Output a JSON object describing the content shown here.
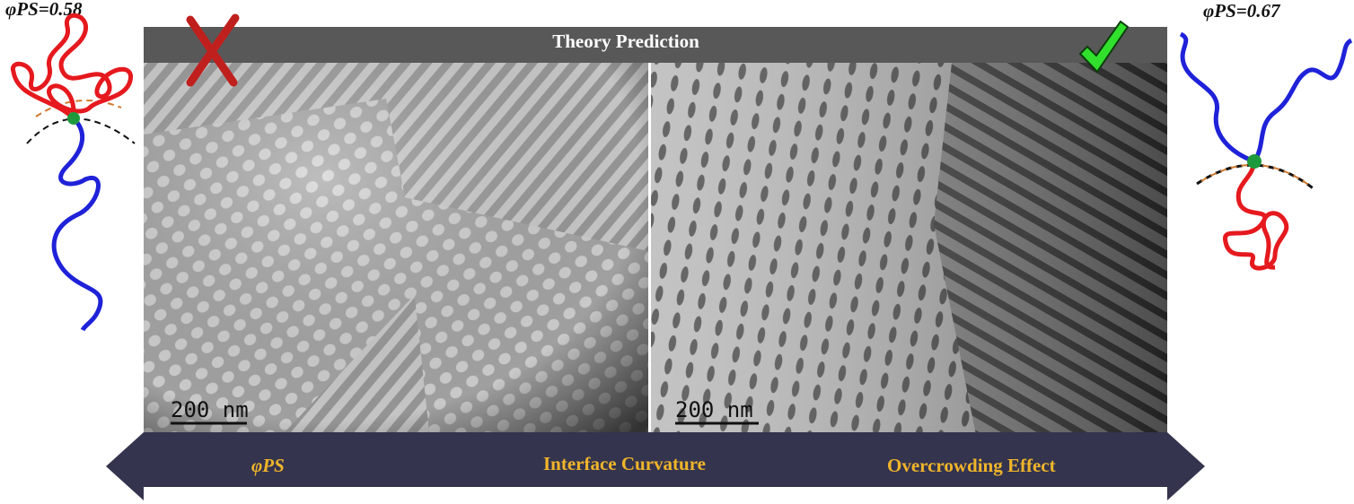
{
  "left_panel": {
    "fraction": "φPS=0.58",
    "scale_bar": "200 nm"
  },
  "right_panel": {
    "fraction": "φPS=0.67",
    "scale_bar": "200 nm"
  },
  "banner": "Theory Prediction",
  "arrow": {
    "labels": [
      "φPS",
      "Interface Curvature",
      "Overcrowding Effect"
    ]
  }
}
